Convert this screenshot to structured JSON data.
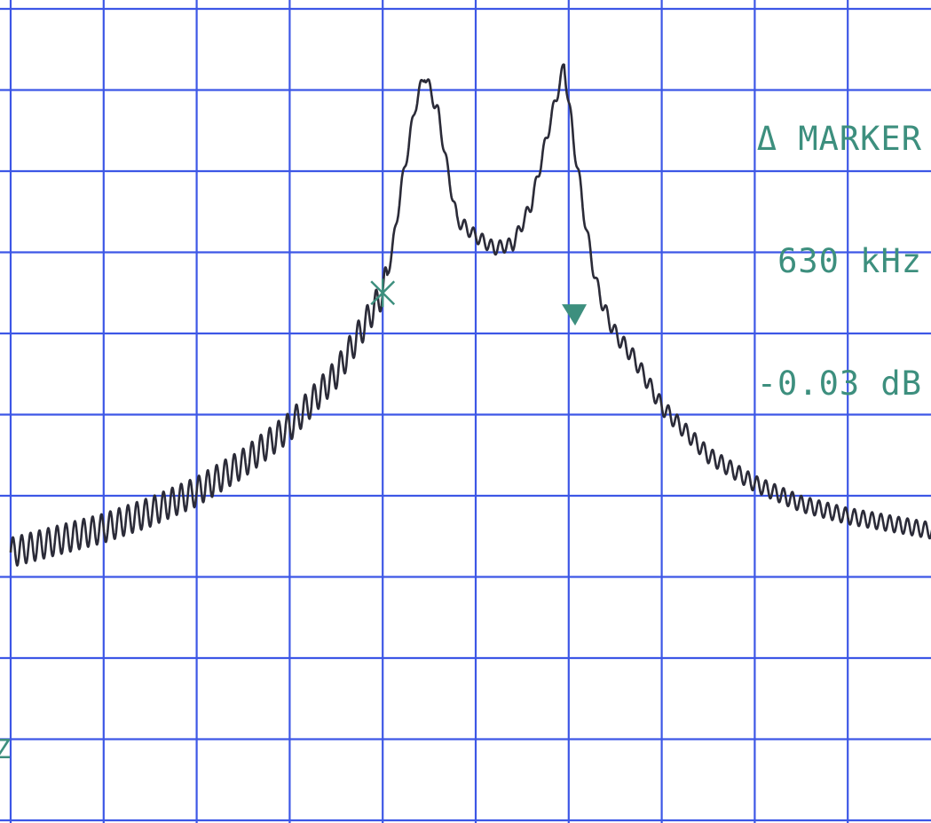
{
  "readout": {
    "line1": "Δ MARKER",
    "line2": "630 kHz",
    "line3": "-0.03 dB"
  },
  "side_label": "Z",
  "colors": {
    "grid": "#3d57e6",
    "trace": "#2b2b38",
    "marker": "#3d8f7e",
    "background": "#ffffff"
  },
  "chart_data": {
    "type": "line",
    "title": "",
    "xlabel": "",
    "ylabel": "",
    "grid": true,
    "x_divisions": 10,
    "y_divisions": 10,
    "xlim": [
      0,
      10
    ],
    "ylim": [
      0,
      10
    ],
    "series": [
      {
        "x": [
          0.0,
          0.5,
          1.0,
          1.5,
          2.0,
          2.5,
          3.0,
          3.5,
          3.8,
          4.0,
          4.1,
          4.2,
          4.35,
          4.45,
          4.6,
          4.7,
          4.8,
          5.0,
          5.2,
          5.4,
          5.6,
          5.8,
          5.95,
          6.05,
          6.2,
          6.3,
          6.4,
          6.5,
          6.7,
          7.0,
          7.5,
          8.0,
          8.5,
          9.0,
          9.5,
          10.0
        ],
        "y": [
          3.3,
          3.45,
          3.6,
          3.8,
          4.05,
          4.4,
          4.85,
          5.5,
          6.1,
          6.5,
          7.0,
          7.8,
          8.8,
          9.2,
          8.7,
          8.0,
          7.4,
          7.2,
          7.05,
          7.1,
          7.6,
          8.6,
          9.3,
          8.4,
          7.2,
          6.6,
          6.25,
          6.0,
          5.7,
          5.1,
          4.5,
          4.15,
          3.9,
          3.75,
          3.65,
          3.55
        ],
        "ripple_amplitude": 0.18
      }
    ],
    "markers": [
      {
        "type": "reference",
        "shape": "x",
        "x": 4.0,
        "y": 6.5
      },
      {
        "type": "delta",
        "shape": "triangle-down",
        "x": 6.05,
        "y": 6.25
      }
    ]
  }
}
